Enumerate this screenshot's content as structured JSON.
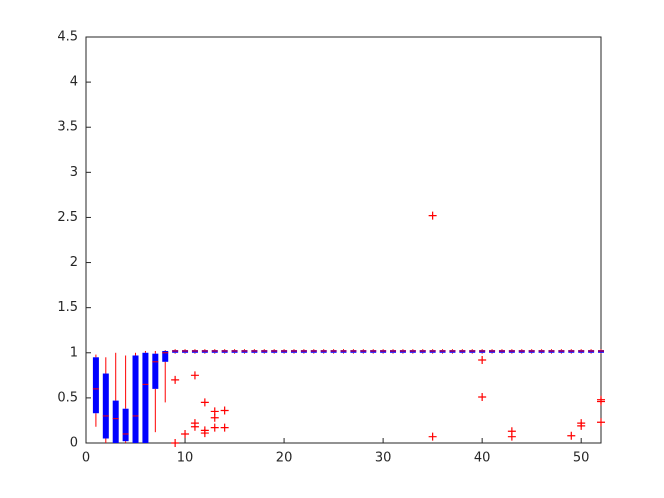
{
  "chart_data": {
    "type": "box",
    "x": [
      1,
      2,
      3,
      4,
      5,
      6,
      7,
      8,
      9,
      10,
      11,
      12,
      13,
      14,
      15,
      16,
      17,
      18,
      19,
      20,
      21,
      22,
      23,
      24,
      25,
      26,
      27,
      28,
      29,
      30,
      31,
      32,
      33,
      34,
      35,
      36,
      37,
      38,
      39,
      40,
      41,
      42,
      43,
      44,
      45,
      46,
      47,
      48,
      49,
      50,
      51,
      52
    ],
    "q1": [
      0.33,
      0.05,
      0.0,
      0.02,
      0.0,
      0.0,
      0.6,
      0.9,
      1.0,
      1.0,
      1.0,
      1.0,
      1.0,
      1.0,
      1.0,
      1.0,
      1.0,
      1.0,
      1.0,
      1.0,
      1.0,
      1.0,
      1.0,
      1.0,
      1.0,
      1.0,
      1.0,
      1.0,
      1.0,
      1.0,
      1.0,
      1.0,
      1.0,
      1.0,
      1.0,
      1.0,
      1.0,
      1.0,
      1.0,
      1.0,
      1.0,
      1.0,
      1.0,
      1.0,
      1.0,
      1.0,
      1.0,
      1.0,
      1.0,
      1.0,
      1.0,
      1.0
    ],
    "median": [
      0.6,
      0.3,
      0.27,
      0.1,
      0.3,
      0.65,
      0.9,
      1.0,
      1.02,
      1.02,
      1.02,
      1.02,
      1.02,
      1.02,
      1.02,
      1.02,
      1.02,
      1.02,
      1.02,
      1.02,
      1.02,
      1.02,
      1.02,
      1.02,
      1.02,
      1.02,
      1.02,
      1.02,
      1.02,
      1.02,
      1.02,
      1.02,
      1.02,
      1.02,
      1.02,
      1.02,
      1.02,
      1.02,
      1.02,
      1.02,
      1.02,
      1.02,
      1.02,
      1.02,
      1.02,
      1.02,
      1.02,
      1.02,
      1.02,
      1.02,
      1.02,
      1.02
    ],
    "q3": [
      0.95,
      0.77,
      0.47,
      0.38,
      0.97,
      1.0,
      0.99,
      1.02,
      1.03,
      1.03,
      1.03,
      1.03,
      1.03,
      1.03,
      1.03,
      1.03,
      1.03,
      1.03,
      1.03,
      1.03,
      1.03,
      1.03,
      1.03,
      1.03,
      1.03,
      1.03,
      1.03,
      1.03,
      1.03,
      1.03,
      1.03,
      1.03,
      1.03,
      1.03,
      1.03,
      1.03,
      1.03,
      1.03,
      1.03,
      1.03,
      1.03,
      1.03,
      1.03,
      1.03,
      1.03,
      1.03,
      1.03,
      1.03,
      1.03,
      1.03,
      1.03,
      1.03
    ],
    "whisker_low": [
      0.18,
      0.0,
      0.0,
      0.0,
      0.0,
      0.0,
      0.12,
      0.45,
      0.99,
      0.99,
      0.99,
      0.99,
      0.99,
      0.99,
      0.99,
      0.99,
      0.99,
      0.99,
      0.99,
      0.99,
      0.99,
      0.99,
      0.99,
      0.99,
      0.99,
      0.99,
      0.99,
      0.99,
      0.99,
      0.99,
      0.99,
      0.99,
      0.99,
      0.99,
      0.99,
      0.99,
      0.99,
      0.99,
      0.99,
      0.99,
      0.99,
      0.99,
      0.99,
      0.99,
      0.99,
      0.99,
      0.99,
      0.99,
      0.99,
      0.99,
      0.99,
      0.99
    ],
    "whisker_high": [
      0.98,
      0.95,
      1.0,
      0.97,
      1.0,
      1.02,
      1.02,
      1.03,
      1.04,
      1.04,
      1.04,
      1.04,
      1.04,
      1.04,
      1.04,
      1.04,
      1.04,
      1.04,
      1.04,
      1.04,
      1.04,
      1.04,
      1.04,
      1.04,
      1.04,
      1.04,
      1.04,
      1.04,
      1.04,
      1.04,
      1.04,
      1.04,
      1.04,
      1.04,
      1.04,
      1.04,
      1.04,
      1.04,
      1.04,
      1.04,
      1.04,
      1.04,
      1.04,
      1.04,
      1.04,
      1.04,
      1.04,
      1.04,
      1.04,
      1.04,
      1.04,
      1.04
    ],
    "outliers": [
      [],
      [],
      [],
      [],
      [],
      [],
      [],
      [],
      [
        0.7,
        0.0
      ],
      [
        0.1
      ],
      [
        0.75,
        0.22,
        0.18
      ],
      [
        0.45,
        0.14,
        0.11
      ],
      [
        0.35,
        0.28,
        0.17
      ],
      [
        0.36,
        0.17
      ],
      [],
      [],
      [],
      [],
      [],
      [],
      [],
      [],
      [],
      [],
      [],
      [],
      [],
      [],
      [],
      [],
      [],
      [],
      [],
      [],
      [
        2.52,
        0.07
      ],
      [],
      [],
      [],
      [],
      [
        0.92,
        0.51
      ],
      [],
      [],
      [
        0.13,
        0.07
      ],
      [],
      [],
      [],
      [],
      [],
      [
        0.08
      ],
      [
        0.22,
        0.19
      ],
      [],
      [
        0.48,
        0.46,
        0.23
      ]
    ],
    "box_color": "#0000ff",
    "line_color": "#ff0000",
    "xlim": [
      0,
      52
    ],
    "xticks": [
      0,
      10,
      20,
      30,
      40,
      50
    ],
    "ylim": [
      0,
      4.5
    ],
    "yticks": [
      0,
      0.5,
      1,
      1.5,
      2,
      2.5,
      3,
      3.5,
      4,
      4.5
    ]
  }
}
